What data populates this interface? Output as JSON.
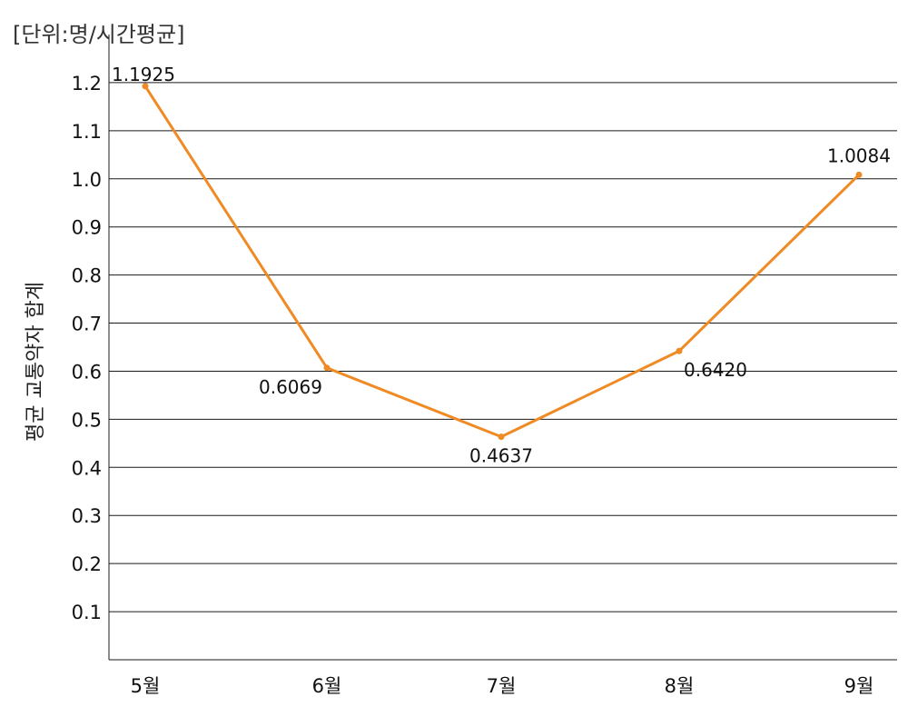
{
  "chart_data": {
    "type": "line",
    "unit_label": "[단위:명/시간평균]",
    "ylabel": "평균 교통약자 합계",
    "xlabel": "",
    "categories": [
      "5월",
      "6월",
      "7월",
      "8월",
      "9월"
    ],
    "series": [
      {
        "values": [
          1.1925,
          0.6069,
          0.4637,
          0.642,
          1.0084
        ],
        "labels": [
          "1.1925",
          "0.6069",
          "0.4637",
          "0.6420",
          "1.0084"
        ]
      }
    ],
    "ylim": [
      0,
      1.2
    ],
    "yticks": [
      "0.1",
      "0.2",
      "0.3",
      "0.4",
      "0.5",
      "0.6",
      "0.7",
      "0.8",
      "0.9",
      "1.0",
      "1.1",
      "1.2"
    ],
    "grid": true,
    "line_color": "#f08a24",
    "legend": "none"
  }
}
